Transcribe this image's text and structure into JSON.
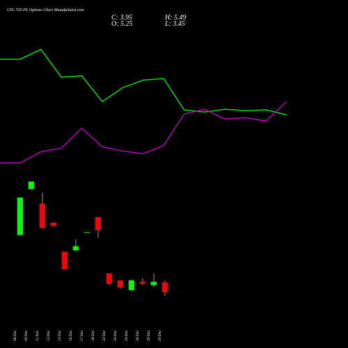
{
  "header": {
    "title": "CPL 720 PE Options Chart MunafaSutra.com",
    "close": "C: 3.95",
    "high": "H: 5.49",
    "open": "O: 5.25",
    "low": "L: 3.45"
  },
  "chart_data": [
    {
      "type": "line",
      "categories": [
        null,
        null,
        null,
        null,
        null,
        null,
        null,
        null,
        null,
        null,
        null,
        null,
        null,
        null,
        null
      ],
      "ylim": [
        0,
        100
      ],
      "series": [
        {
          "color": "#00ff00",
          "values": [
            86.1,
            86.1,
            93.9,
            71.7,
            72.8,
            52.2,
            63.3,
            69.4,
            70.6,
            45.6,
            43.9,
            46.1,
            45,
            45.6,
            41.7
          ]
        },
        {
          "color": "#cc00cc",
          "values": [
            3.3,
            3.3,
            12.2,
            15,
            31.1,
            16.1,
            12.8,
            10.6,
            17.2,
            42.2,
            46.1,
            38.3,
            39.4,
            36.7,
            52.2
          ]
        }
      ]
    },
    {
      "type": "candlestick",
      "categories": [
        "08 Dec",
        "09 Dec",
        "11 Dec",
        "12 Dec",
        "13 Dec",
        "16 Dec",
        "17 Dec",
        "18 Dec",
        "22 Dec",
        "23 Dec",
        "24 Dec",
        "26 Dec",
        "29 Dec",
        "30 Dec"
      ],
      "open": [
        11.57,
        17.7,
        15.75,
        13.24,
        9.34,
        9.52,
        11.9,
        13.98,
        6.46,
        5.53,
        4.23,
        5.34,
        4.88,
        5.25
      ],
      "high": [
        16.58,
        18.72,
        17.23,
        13.24,
        9.34,
        11.01,
        11.95,
        13.98,
        6.46,
        5.53,
        5.62,
        5.81,
        6.46,
        5.49
      ],
      "low": [
        11.57,
        17.7,
        12.5,
        12.77,
        7.02,
        9.52,
        11.9,
        11.2,
        4.88,
        4.41,
        4.13,
        4.88,
        4.6,
        3.45
      ],
      "close": [
        16.58,
        18.72,
        12.5,
        12.77,
        7.02,
        10.08,
        11.95,
        12.22,
        5.06,
        4.6,
        5.53,
        5.06,
        5.34,
        3.95
      ],
      "up_color": "#00ff00",
      "down_color": "#ff0000",
      "ylim": [
        3,
        20
      ]
    }
  ]
}
